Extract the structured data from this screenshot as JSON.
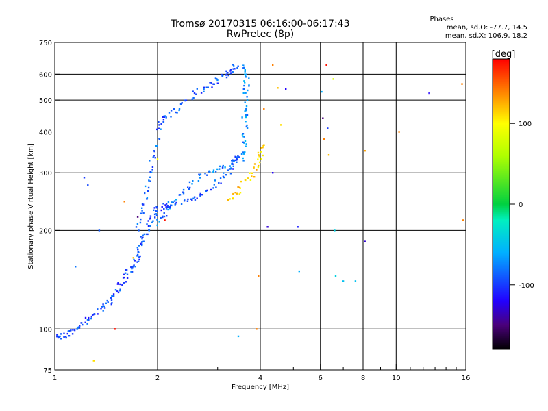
{
  "title_line1": "Tromsø 20170315 06:16:00-06:17:43",
  "title_line2": "RwPretec (8p)",
  "phases": {
    "title": "Phases",
    "o_line": "mean, sd,O: -77.7, 14.5",
    "x_line": "mean, sd,X: 106.9, 18.2"
  },
  "colorbar": {
    "unit_label": "[deg]",
    "ticks": [
      {
        "value": 100,
        "label": "100"
      },
      {
        "value": 0,
        "label": "0"
      },
      {
        "value": -100,
        "label": "-100"
      }
    ],
    "range": [
      -180,
      180
    ],
    "stops": [
      {
        "value": -180,
        "color": "#000000"
      },
      {
        "value": -150,
        "color": "#4a007a"
      },
      {
        "value": -120,
        "color": "#2200ff"
      },
      {
        "value": -60,
        "color": "#00b0ff"
      },
      {
        "value": -20,
        "color": "#00f0c0"
      },
      {
        "value": 0,
        "color": "#00d040"
      },
      {
        "value": 60,
        "color": "#b0ff00"
      },
      {
        "value": 100,
        "color": "#ffff00"
      },
      {
        "value": 140,
        "color": "#ff8000"
      },
      {
        "value": 180,
        "color": "#ff0000"
      }
    ]
  },
  "chart_data": {
    "type": "scatter",
    "title": "Tromsø 20170315 06:16:00-06:17:43",
    "subtitle": "RwPretec (8p)",
    "xlabel": "Frequency [MHz]",
    "ylabel": "Stationary phase Virtual Height [km]",
    "xscale": "log",
    "yscale": "log",
    "xlim": [
      1,
      16
    ],
    "ylim": [
      75,
      750
    ],
    "grid": true,
    "xticks": [
      {
        "value": 1,
        "label": "1"
      },
      {
        "value": 2,
        "label": "2"
      },
      {
        "value": 4,
        "label": "4"
      },
      {
        "value": 6,
        "label": "6"
      },
      {
        "value": 8,
        "label": "8"
      },
      {
        "value": 10,
        "label": "10"
      },
      {
        "value": 16,
        "label": "16"
      }
    ],
    "xminor": [
      3,
      5,
      7,
      9,
      11,
      12,
      13,
      14,
      15
    ],
    "yticks": [
      {
        "value": 75,
        "label": "75"
      },
      {
        "value": 100,
        "label": "100"
      },
      {
        "value": 200,
        "label": "200"
      },
      {
        "value": 300,
        "label": "300"
      },
      {
        "value": 400,
        "label": "400"
      },
      {
        "value": 500,
        "label": "500"
      },
      {
        "value": 600,
        "label": "600"
      },
      {
        "value": 750,
        "label": "750"
      }
    ],
    "color_by": "phase_deg",
    "traces": [
      {
        "name": "o-lower",
        "phase": -95,
        "points": [
          [
            1.0,
            95
          ],
          [
            1.05,
            95
          ],
          [
            1.1,
            97
          ],
          [
            1.15,
            100
          ],
          [
            1.2,
            103
          ],
          [
            1.25,
            107
          ],
          [
            1.3,
            110
          ],
          [
            1.38,
            117
          ],
          [
            1.45,
            122
          ],
          [
            1.5,
            128
          ],
          [
            1.55,
            135
          ],
          [
            1.6,
            142
          ],
          [
            1.65,
            150
          ],
          [
            1.7,
            158
          ],
          [
            1.75,
            166
          ],
          [
            1.78,
            175
          ],
          [
            1.8,
            185
          ],
          [
            1.85,
            196
          ],
          [
            1.9,
            210
          ],
          [
            1.95,
            223
          ],
          [
            2.0,
            232
          ],
          [
            2.1,
            238
          ],
          [
            2.2,
            242
          ],
          [
            2.4,
            245
          ],
          [
            2.6,
            250
          ],
          [
            2.8,
            262
          ],
          [
            3.0,
            280
          ],
          [
            3.2,
            300
          ],
          [
            3.35,
            318
          ],
          [
            3.45,
            340
          ]
        ]
      },
      {
        "name": "o-cusp",
        "phase": -80,
        "points": [
          [
            2.0,
            210
          ],
          [
            2.1,
            225
          ],
          [
            2.2,
            245
          ],
          [
            2.4,
            265
          ],
          [
            2.6,
            285
          ],
          [
            2.8,
            300
          ],
          [
            3.0,
            310
          ],
          [
            3.3,
            320
          ],
          [
            3.4,
            330
          ]
        ]
      },
      {
        "name": "o-upper",
        "phase": -90,
        "points": [
          [
            2.0,
            400
          ],
          [
            2.05,
            430
          ],
          [
            2.15,
            450
          ],
          [
            2.3,
            470
          ],
          [
            2.5,
            510
          ],
          [
            2.7,
            540
          ],
          [
            2.9,
            560
          ],
          [
            3.05,
            585
          ],
          [
            3.2,
            600
          ],
          [
            3.3,
            620
          ],
          [
            3.4,
            640
          ]
        ]
      },
      {
        "name": "o-vertical",
        "phase": -70,
        "points": [
          [
            3.55,
            330
          ],
          [
            3.6,
            360
          ],
          [
            3.6,
            400
          ],
          [
            3.6,
            450
          ],
          [
            3.62,
            500
          ],
          [
            3.65,
            560
          ],
          [
            3.62,
            600
          ],
          [
            3.6,
            640
          ]
        ]
      },
      {
        "name": "o-left-wall",
        "phase": -85,
        "points": [
          [
            1.75,
            200
          ],
          [
            1.8,
            230
          ],
          [
            1.85,
            260
          ],
          [
            1.9,
            300
          ],
          [
            1.95,
            340
          ],
          [
            2.0,
            380
          ]
        ]
      },
      {
        "name": "x-trace",
        "phase": 115,
        "points": [
          [
            3.25,
            250
          ],
          [
            3.4,
            260
          ],
          [
            3.6,
            280
          ],
          [
            3.8,
            300
          ],
          [
            3.95,
            320
          ],
          [
            4.0,
            345
          ],
          [
            4.05,
            370
          ]
        ]
      }
    ],
    "scatter": [
      {
        "f": 1.22,
        "h": 290,
        "phase": -100
      },
      {
        "f": 1.25,
        "h": 275,
        "phase": -95
      },
      {
        "f": 1.15,
        "h": 155,
        "phase": -80
      },
      {
        "f": 1.35,
        "h": 200,
        "phase": -90
      },
      {
        "f": 1.3,
        "h": 80,
        "phase": 110
      },
      {
        "f": 1.5,
        "h": 100,
        "phase": 175
      },
      {
        "f": 1.6,
        "h": 245,
        "phase": 140
      },
      {
        "f": 1.7,
        "h": 165,
        "phase": 120
      },
      {
        "f": 1.75,
        "h": 220,
        "phase": -150
      },
      {
        "f": 2.0,
        "h": 330,
        "phase": 100
      },
      {
        "f": 2.1,
        "h": 215,
        "phase": 175
      },
      {
        "f": 3.45,
        "h": 95,
        "phase": -60
      },
      {
        "f": 3.9,
        "h": 100,
        "phase": 140
      },
      {
        "f": 3.95,
        "h": 145,
        "phase": 140
      },
      {
        "f": 4.1,
        "h": 470,
        "phase": 140
      },
      {
        "f": 4.2,
        "h": 205,
        "phase": -130
      },
      {
        "f": 4.35,
        "h": 300,
        "phase": -120
      },
      {
        "f": 4.35,
        "h": 640,
        "phase": 140
      },
      {
        "f": 4.5,
        "h": 545,
        "phase": 120
      },
      {
        "f": 4.6,
        "h": 420,
        "phase": 110
      },
      {
        "f": 4.75,
        "h": 540,
        "phase": -120
      },
      {
        "f": 5.15,
        "h": 205,
        "phase": -110
      },
      {
        "f": 5.2,
        "h": 150,
        "phase": -60
      },
      {
        "f": 6.05,
        "h": 530,
        "phase": -60
      },
      {
        "f": 6.1,
        "h": 440,
        "phase": -150
      },
      {
        "f": 6.15,
        "h": 380,
        "phase": 140
      },
      {
        "f": 6.25,
        "h": 640,
        "phase": 175
      },
      {
        "f": 6.3,
        "h": 410,
        "phase": -100
      },
      {
        "f": 6.35,
        "h": 340,
        "phase": 120
      },
      {
        "f": 6.55,
        "h": 580,
        "phase": 80
      },
      {
        "f": 6.6,
        "h": 200,
        "phase": -40
      },
      {
        "f": 6.65,
        "h": 145,
        "phase": -40
      },
      {
        "f": 7.0,
        "h": 140,
        "phase": -50
      },
      {
        "f": 7.6,
        "h": 140,
        "phase": -50
      },
      {
        "f": 8.1,
        "h": 350,
        "phase": 130
      },
      {
        "f": 8.1,
        "h": 185,
        "phase": -130
      },
      {
        "f": 10.2,
        "h": 400,
        "phase": 140
      },
      {
        "f": 12.5,
        "h": 525,
        "phase": -120
      },
      {
        "f": 15.6,
        "h": 560,
        "phase": 140
      },
      {
        "f": 15.7,
        "h": 215,
        "phase": 140
      }
    ]
  }
}
